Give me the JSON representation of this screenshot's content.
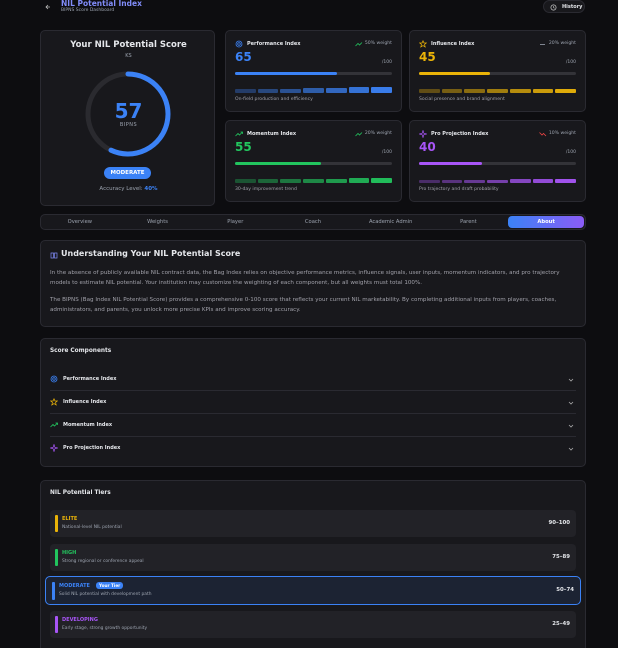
{
  "header": {
    "title": "NIL Potential Index",
    "subtitle": "BIPNS Score Dashboard",
    "history": "History"
  },
  "score_card": {
    "title": "Your NIL Potential Score",
    "initials": "KS",
    "score": 57,
    "range": [
      0,
      100
    ],
    "unit": "BIPNS",
    "tier": "MODERATE",
    "accuracy_label": "Accuracy Level:",
    "accuracy": "40%",
    "color": "#3b82f6"
  },
  "indices": [
    {
      "name": "Performance Index",
      "weight": "50% weight",
      "value": 65,
      "out_of": "/100",
      "description": "On-field production and efficiency",
      "color": "#3b82f6",
      "trend": [
        40,
        45,
        50,
        55,
        60,
        62,
        65
      ]
    },
    {
      "name": "Influence Index",
      "weight": "20% weight",
      "value": 45,
      "out_of": "/100",
      "description": "Social presence and brand alignment",
      "color": "#eab308",
      "trend": [
        42,
        44,
        43,
        45,
        46,
        45,
        45
      ]
    },
    {
      "name": "Momentum Index",
      "weight": "20% weight",
      "value": 55,
      "out_of": "/100",
      "description": "30-day improvement trend",
      "color": "#22c55e",
      "trend": [
        40,
        42,
        45,
        48,
        50,
        53,
        55
      ]
    },
    {
      "name": "Pro Projection Index",
      "weight": "10% weight",
      "value": 40,
      "out_of": "/100",
      "description": "Pro trajectory and draft probability",
      "color": "#a855f7",
      "trend": [
        35,
        36,
        38,
        37,
        39,
        40,
        40
      ]
    }
  ],
  "tabs": [
    "Overview",
    "Weights",
    "Player",
    "Coach",
    "Academic Admin",
    "Parent",
    "About"
  ],
  "about": {
    "title": "Understanding Your NIL Potential Score",
    "paragraphs": [
      "In the absence of publicly available NIL contract data, the Bag Index relies on objective performance metrics, influence signals, user inputs, momentum indicators, and pro trajectory models to estimate NIL potential. Your institution may customize the weighting of each component, but all weights must total 100%.",
      "The BIPNS (Bag Index NIL Potential Score) provides a comprehensive 0-100 score that reflects your current NIL marketability. By completing additional inputs from players, coaches, administrators, and parents, you unlock more precise KPIs and improve scoring accuracy."
    ]
  },
  "components": {
    "title": "Score Components",
    "items": [
      "Performance Index",
      "Influence Index",
      "Momentum Index",
      "Pro Projection Index"
    ]
  },
  "tiers": {
    "title": "NIL Potential Tiers",
    "your_tier_label": "Your Tier",
    "items": [
      {
        "name": "ELITE",
        "description": "National-level NIL potential",
        "range": "90–100",
        "color": "#eab308"
      },
      {
        "name": "HIGH",
        "description": "Strong regional or conference appeal",
        "range": "75–89",
        "color": "#22c55e"
      },
      {
        "name": "MODERATE",
        "description": "Solid NIL potential with development path",
        "range": "50–74",
        "color": "#3b82f6"
      },
      {
        "name": "DEVELOPING",
        "description": "Early stage, strong growth opportunity",
        "range": "25–49",
        "color": "#a855f7"
      }
    ]
  }
}
